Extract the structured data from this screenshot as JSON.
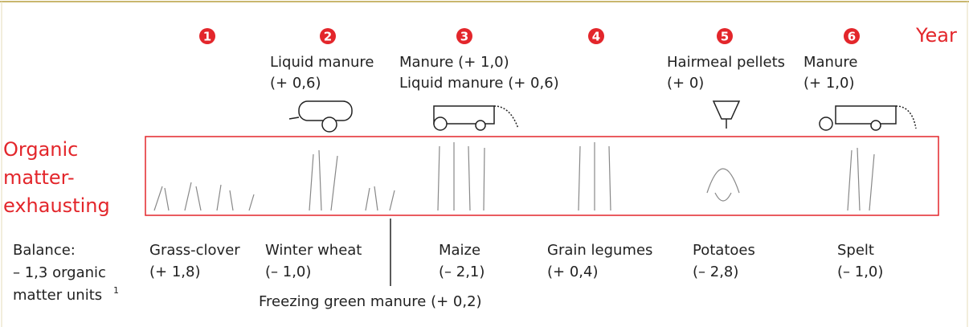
{
  "year_label": "Year",
  "years": [
    "1",
    "2",
    "3",
    "4",
    "5",
    "6"
  ],
  "fertilizers": [
    {
      "lines": [
        "Liquid manure",
        "(+ 0,6)"
      ]
    },
    {
      "lines": [
        "Manure (+ 1,0)",
        "Liquid manure (+ 0,6)"
      ]
    },
    {
      "lines": [
        "Hairmeal pellets",
        "(+ 0)"
      ]
    },
    {
      "lines": [
        "Manure",
        "(+ 1,0)"
      ]
    }
  ],
  "side_label": [
    "Organic",
    "matter-",
    "exhausting"
  ],
  "balance": {
    "lines": [
      "Balance:",
      "– 1,3 organic",
      "matter units"
    ],
    "footnote": "1"
  },
  "crops": [
    {
      "name": "Grass-clover",
      "balance": "(+ 1,8)"
    },
    {
      "name": "Winter wheat",
      "balance": "(– 1,0)"
    },
    {
      "name": "Maize",
      "balance": "(– 2,1)"
    },
    {
      "name": "Grain legumes",
      "balance": "(+ 0,4)"
    },
    {
      "name": "Potatoes",
      "balance": "(– 2,8)"
    },
    {
      "name": "Spelt",
      "balance": "(– 1,0)"
    }
  ],
  "intercrop": "Freezing green manure (+ 0,2)"
}
